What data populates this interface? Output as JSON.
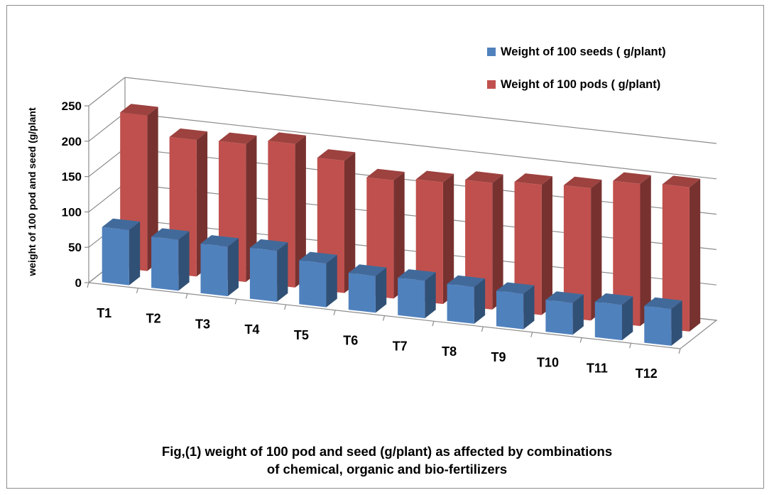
{
  "chart_data": {
    "type": "bar",
    "title": "",
    "ylabel": "weight of 100 pod and seed (g/plant",
    "xlabel": "",
    "ylim": [
      0,
      250
    ],
    "yticks": [
      0,
      50,
      100,
      150,
      200,
      250
    ],
    "categories": [
      "T1",
      "T2",
      "T3",
      "T4",
      "T5",
      "T6",
      "T7",
      "T8",
      "T9",
      "T10",
      "T11",
      "T12"
    ],
    "series": [
      {
        "name": "Weight of 100 seeds ( g/plant)",
        "color": "#4f81bd",
        "values": [
          78,
          72,
          70,
          72,
          62,
          52,
          53,
          52,
          50,
          45,
          50,
          52
        ]
      },
      {
        "name": "Weight of 100 pods ( g/plant)",
        "color": "#c0504d",
        "values": [
          220,
          193,
          195,
          203,
          187,
          167,
          172,
          179,
          184,
          187,
          201,
          204
        ]
      }
    ],
    "legend_position": "top-right",
    "grid": true,
    "style": "3d-clustered-columns"
  },
  "caption": {
    "line1": "Fig,(1) weight of 100 pod and seed (g/plant)  as affected by combinations",
    "line2": "of chemical, organic and bio-fertilizers"
  }
}
